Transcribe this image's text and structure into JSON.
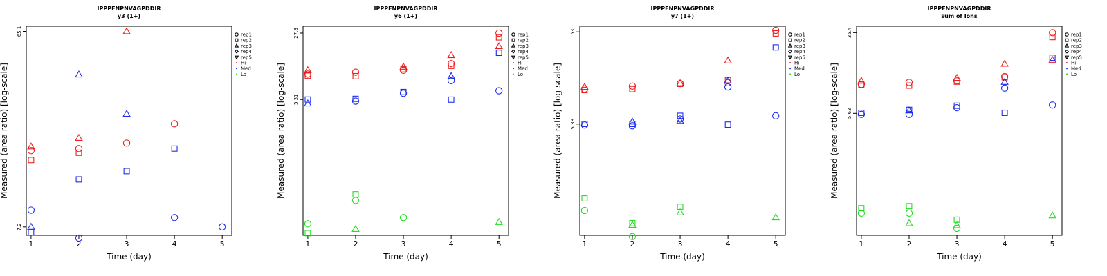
{
  "colors": {
    "Hi": "#ee1c1c",
    "Med": "#1c2cee",
    "Lo": "#22dd22"
  },
  "legend": {
    "items": [
      {
        "label": "rep1",
        "symbol": "circle"
      },
      {
        "label": "rep2",
        "symbol": "square"
      },
      {
        "label": "rep3",
        "symbol": "triangle"
      },
      {
        "label": "rep4",
        "symbol": "diamond"
      },
      {
        "label": "rep5",
        "symbol": "triangle-down"
      },
      {
        "label": "Hi",
        "symbol": "dot",
        "color": "#ee1c1c"
      },
      {
        "label": "Med",
        "symbol": "dot",
        "color": "#1c2cee"
      },
      {
        "label": "Lo",
        "symbol": "dot",
        "color": "#22dd22"
      }
    ]
  },
  "chart_data": [
    {
      "type": "scatter",
      "title": "IPPPFNPNVAGPDDIR",
      "subtitle": "y3 (1+)",
      "xlabel": "Time (day)",
      "ylabel": "Measured (area ratio) [log-scale]",
      "log_y": true,
      "xlim": [
        0.9,
        5.2
      ],
      "ylim": [
        6.55,
        69.0
      ],
      "x_ticks": [
        "1",
        "2",
        "3",
        "4",
        "5"
      ],
      "y_ticks": [
        {
          "value": 65.1,
          "label": "65.1"
        },
        {
          "value": 7.2,
          "label": "7.2"
        }
      ],
      "series": [
        {
          "name": "Hi",
          "points": [
            {
              "x": 1,
              "y": 17.8,
              "shape": "triangle"
            },
            {
              "x": 1,
              "y": 17.0,
              "shape": "circle"
            },
            {
              "x": 1,
              "y": 15.3,
              "shape": "square"
            },
            {
              "x": 2,
              "y": 19.6,
              "shape": "triangle"
            },
            {
              "x": 2,
              "y": 17.4,
              "shape": "circle"
            },
            {
              "x": 2,
              "y": 16.6,
              "shape": "square"
            },
            {
              "x": 3,
              "y": 65.1,
              "shape": "triangle"
            },
            {
              "x": 3,
              "y": 18.5,
              "shape": "circle"
            },
            {
              "x": 4,
              "y": 23.0,
              "shape": "circle"
            }
          ]
        },
        {
          "name": "Med",
          "points": [
            {
              "x": 1,
              "y": 8.7,
              "shape": "circle"
            },
            {
              "x": 1,
              "y": 7.2,
              "shape": "triangle"
            },
            {
              "x": 1,
              "y": 6.75,
              "shape": "square"
            },
            {
              "x": 2,
              "y": 40.0,
              "shape": "triangle"
            },
            {
              "x": 2,
              "y": 12.3,
              "shape": "square"
            },
            {
              "x": 2,
              "y": 6.35,
              "shape": "circle"
            },
            {
              "x": 3,
              "y": 25.7,
              "shape": "triangle"
            },
            {
              "x": 3,
              "y": 13.5,
              "shape": "square"
            },
            {
              "x": 4,
              "y": 17.4,
              "shape": "square"
            },
            {
              "x": 4,
              "y": 8.0,
              "shape": "circle"
            },
            {
              "x": 5,
              "y": 7.2,
              "shape": "circle"
            }
          ]
        },
        {
          "name": "Lo",
          "points": []
        }
      ]
    },
    {
      "type": "scatter",
      "title": "IPPPFNPNVAGPDDIR",
      "subtitle": "y6 (1+)",
      "xlabel": "Time (day)",
      "ylabel": "Measured (area ratio) [log-scale]",
      "log_y": true,
      "xlim": [
        0.9,
        5.2
      ],
      "ylim": [
        0.18,
        33.0
      ],
      "x_ticks": [
        "1",
        "2",
        "3",
        "4",
        "5"
      ],
      "y_ticks": [
        {
          "value": 27.8,
          "label": "27.8"
        },
        {
          "value": 5.31,
          "label": "5.31"
        }
      ],
      "series": [
        {
          "name": "Hi",
          "points": [
            {
              "x": 1,
              "y": 11.0,
              "shape": "triangle"
            },
            {
              "x": 1,
              "y": 10.0,
              "shape": "circle"
            },
            {
              "x": 1,
              "y": 9.6,
              "shape": "square"
            },
            {
              "x": 2,
              "y": 10.5,
              "shape": "circle"
            },
            {
              "x": 2,
              "y": 9.5,
              "shape": "square"
            },
            {
              "x": 3,
              "y": 12.0,
              "shape": "triangle"
            },
            {
              "x": 3,
              "y": 11.0,
              "shape": "circle"
            },
            {
              "x": 3,
              "y": 11.3,
              "shape": "square"
            },
            {
              "x": 4,
              "y": 16.0,
              "shape": "triangle"
            },
            {
              "x": 4,
              "y": 13.0,
              "shape": "circle"
            },
            {
              "x": 4,
              "y": 12.3,
              "shape": "square"
            },
            {
              "x": 5,
              "y": 27.8,
              "shape": "circle"
            },
            {
              "x": 5,
              "y": 25.0,
              "shape": "square"
            },
            {
              "x": 5,
              "y": 20.0,
              "shape": "triangle"
            }
          ]
        },
        {
          "name": "Med",
          "points": [
            {
              "x": 1,
              "y": 5.31,
              "shape": "square"
            },
            {
              "x": 1,
              "y": 4.8,
              "shape": "triangle"
            },
            {
              "x": 2,
              "y": 5.4,
              "shape": "square"
            },
            {
              "x": 2,
              "y": 5.1,
              "shape": "circle"
            },
            {
              "x": 3,
              "y": 6.4,
              "shape": "square"
            },
            {
              "x": 3,
              "y": 6.2,
              "shape": "circle"
            },
            {
              "x": 4,
              "y": 9.5,
              "shape": "triangle"
            },
            {
              "x": 4,
              "y": 8.5,
              "shape": "circle"
            },
            {
              "x": 4,
              "y": 5.3,
              "shape": "square"
            },
            {
              "x": 5,
              "y": 17.0,
              "shape": "square"
            },
            {
              "x": 5,
              "y": 6.6,
              "shape": "circle"
            }
          ]
        },
        {
          "name": "Lo",
          "points": [
            {
              "x": 1,
              "y": 0.24,
              "shape": "circle"
            },
            {
              "x": 1,
              "y": 0.19,
              "shape": "square"
            },
            {
              "x": 2,
              "y": 0.5,
              "shape": "square"
            },
            {
              "x": 2,
              "y": 0.43,
              "shape": "circle"
            },
            {
              "x": 2,
              "y": 0.21,
              "shape": "triangle"
            },
            {
              "x": 3,
              "y": 0.28,
              "shape": "circle"
            },
            {
              "x": 5,
              "y": 0.25,
              "shape": "triangle"
            }
          ]
        }
      ]
    },
    {
      "type": "scatter",
      "title": "IPPPFNPNVAGPDDIR",
      "subtitle": "y7 (1+)",
      "xlabel": "Time (day)",
      "ylabel": "Measured (area ratio) [log-scale]",
      "log_y": true,
      "xlim": [
        0.9,
        5.2
      ],
      "ylim": [
        0.34,
        61.0
      ],
      "x_ticks": [
        "1",
        "2",
        "3",
        "4",
        "5"
      ],
      "y_ticks": [
        {
          "value": 53,
          "label": "53"
        },
        {
          "value": 5.38,
          "label": "5.38"
        }
      ],
      "series": [
        {
          "name": "Hi",
          "points": [
            {
              "x": 1,
              "y": 13.5,
              "shape": "triangle"
            },
            {
              "x": 1,
              "y": 12.8,
              "shape": "circle"
            },
            {
              "x": 1,
              "y": 12.5,
              "shape": "square"
            },
            {
              "x": 2,
              "y": 13.8,
              "shape": "circle"
            },
            {
              "x": 2,
              "y": 12.8,
              "shape": "square"
            },
            {
              "x": 3,
              "y": 14.8,
              "shape": "triangle"
            },
            {
              "x": 3,
              "y": 14.7,
              "shape": "circle"
            },
            {
              "x": 3,
              "y": 14.6,
              "shape": "square"
            },
            {
              "x": 4,
              "y": 26.0,
              "shape": "triangle"
            },
            {
              "x": 4,
              "y": 16.0,
              "shape": "square"
            },
            {
              "x": 4,
              "y": 15.0,
              "shape": "circle"
            },
            {
              "x": 5,
              "y": 55.0,
              "shape": "circle"
            },
            {
              "x": 5,
              "y": 51.0,
              "shape": "square"
            }
          ]
        },
        {
          "name": "Med",
          "points": [
            {
              "x": 1,
              "y": 5.4,
              "shape": "square"
            },
            {
              "x": 1,
              "y": 5.25,
              "shape": "circle"
            },
            {
              "x": 2,
              "y": 5.7,
              "shape": "triangle"
            },
            {
              "x": 2,
              "y": 5.4,
              "shape": "square"
            },
            {
              "x": 2,
              "y": 5.15,
              "shape": "circle"
            },
            {
              "x": 3,
              "y": 6.6,
              "shape": "square"
            },
            {
              "x": 3,
              "y": 6.1,
              "shape": "circle"
            },
            {
              "x": 3,
              "y": 5.8,
              "shape": "triangle"
            },
            {
              "x": 4,
              "y": 15.8,
              "shape": "triangle"
            },
            {
              "x": 4,
              "y": 13.5,
              "shape": "circle"
            },
            {
              "x": 4,
              "y": 5.3,
              "shape": "square"
            },
            {
              "x": 5,
              "y": 36.0,
              "shape": "square"
            },
            {
              "x": 5,
              "y": 6.6,
              "shape": "circle"
            }
          ]
        },
        {
          "name": "Lo",
          "points": [
            {
              "x": 1,
              "y": 0.85,
              "shape": "square"
            },
            {
              "x": 1,
              "y": 0.63,
              "shape": "circle"
            },
            {
              "x": 2,
              "y": 0.46,
              "shape": "square"
            },
            {
              "x": 2,
              "y": 0.44,
              "shape": "triangle"
            },
            {
              "x": 2,
              "y": 0.33,
              "shape": "circle"
            },
            {
              "x": 3,
              "y": 0.69,
              "shape": "square"
            },
            {
              "x": 3,
              "y": 0.6,
              "shape": "triangle"
            },
            {
              "x": 5,
              "y": 0.53,
              "shape": "triangle"
            }
          ]
        }
      ]
    },
    {
      "type": "scatter",
      "title": "IPPPFNPNVAGPDDIR",
      "subtitle": "sum of Ions",
      "xlabel": "Time (day)",
      "ylabel": "Measured (area ratio) [log-scale]",
      "log_y": true,
      "xlim": [
        0.9,
        5.2
      ],
      "ylim": [
        0.35,
        41.0
      ],
      "x_ticks": [
        "1",
        "2",
        "3",
        "4",
        "5"
      ],
      "y_ticks": [
        {
          "value": 35.4,
          "label": "35.4"
        },
        {
          "value": 5.63,
          "label": "5.63"
        }
      ],
      "series": [
        {
          "name": "Hi",
          "points": [
            {
              "x": 1,
              "y": 11.8,
              "shape": "triangle"
            },
            {
              "x": 1,
              "y": 10.9,
              "shape": "circle"
            },
            {
              "x": 1,
              "y": 10.8,
              "shape": "square"
            },
            {
              "x": 2,
              "y": 11.4,
              "shape": "circle"
            },
            {
              "x": 2,
              "y": 10.6,
              "shape": "square"
            },
            {
              "x": 3,
              "y": 12.6,
              "shape": "triangle"
            },
            {
              "x": 3,
              "y": 11.8,
              "shape": "circle"
            },
            {
              "x": 3,
              "y": 11.6,
              "shape": "square"
            },
            {
              "x": 4,
              "y": 17.4,
              "shape": "triangle"
            },
            {
              "x": 4,
              "y": 13.0,
              "shape": "circle"
            },
            {
              "x": 4,
              "y": 12.8,
              "shape": "square"
            },
            {
              "x": 5,
              "y": 35.4,
              "shape": "circle"
            },
            {
              "x": 5,
              "y": 32.0,
              "shape": "square"
            },
            {
              "x": 5,
              "y": 19.0,
              "shape": "triangle"
            }
          ]
        },
        {
          "name": "Med",
          "points": [
            {
              "x": 1,
              "y": 5.7,
              "shape": "square"
            },
            {
              "x": 1,
              "y": 5.5,
              "shape": "circle"
            },
            {
              "x": 2,
              "y": 6.1,
              "shape": "square"
            },
            {
              "x": 2,
              "y": 6.0,
              "shape": "triangle"
            },
            {
              "x": 2,
              "y": 5.5,
              "shape": "circle"
            },
            {
              "x": 3,
              "y": 6.7,
              "shape": "square"
            },
            {
              "x": 3,
              "y": 6.4,
              "shape": "circle"
            },
            {
              "x": 4,
              "y": 11.5,
              "shape": "triangle"
            },
            {
              "x": 4,
              "y": 10.0,
              "shape": "circle"
            },
            {
              "x": 4,
              "y": 5.7,
              "shape": "square"
            },
            {
              "x": 5,
              "y": 20.0,
              "shape": "square"
            },
            {
              "x": 5,
              "y": 6.8,
              "shape": "circle"
            }
          ]
        },
        {
          "name": "Lo",
          "points": [
            {
              "x": 1,
              "y": 0.65,
              "shape": "square"
            },
            {
              "x": 1,
              "y": 0.58,
              "shape": "circle"
            },
            {
              "x": 2,
              "y": 0.68,
              "shape": "square"
            },
            {
              "x": 2,
              "y": 0.58,
              "shape": "circle"
            },
            {
              "x": 2,
              "y": 0.46,
              "shape": "triangle"
            },
            {
              "x": 3,
              "y": 0.5,
              "shape": "square"
            },
            {
              "x": 3,
              "y": 0.44,
              "shape": "triangle"
            },
            {
              "x": 3,
              "y": 0.41,
              "shape": "circle"
            },
            {
              "x": 5,
              "y": 0.55,
              "shape": "triangle"
            }
          ]
        }
      ]
    }
  ]
}
